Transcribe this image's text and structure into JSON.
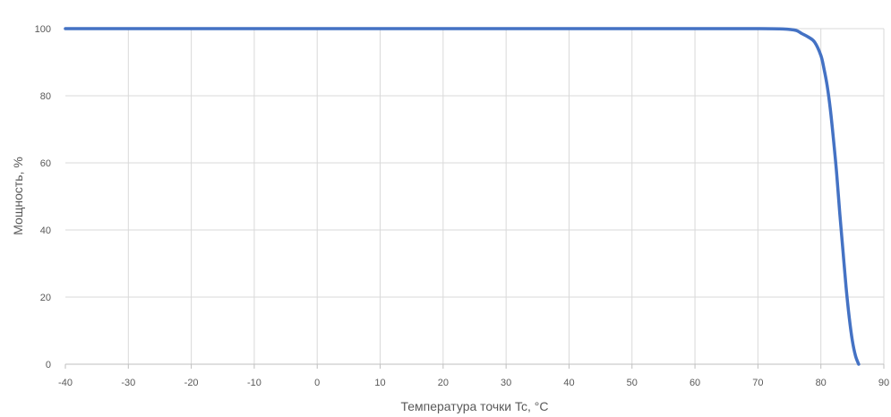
{
  "chart_data": {
    "type": "line",
    "title": "",
    "xlabel": "Температура точки Tc, °C",
    "ylabel": "Мощность, %",
    "xlim": [
      -40,
      90
    ],
    "ylim": [
      0,
      100
    ],
    "x_ticks": [
      -40,
      -30,
      -20,
      -10,
      0,
      10,
      20,
      30,
      40,
      50,
      60,
      70,
      80,
      90
    ],
    "y_ticks": [
      0,
      20,
      40,
      60,
      80,
      100
    ],
    "grid": true,
    "legend": "none",
    "series": [
      {
        "color": "#4472C4",
        "x": [
          -40,
          -30,
          -20,
          -10,
          0,
          10,
          20,
          30,
          40,
          50,
          60,
          70,
          74,
          76,
          77,
          78,
          79,
          80,
          80.5,
          81,
          81.5,
          82,
          82.5,
          83,
          83.5,
          84,
          84.5,
          85,
          85.5,
          86
        ],
        "y": [
          100,
          100,
          100,
          100,
          100,
          100,
          100,
          100,
          100,
          100,
          100,
          100,
          99.9,
          99.5,
          98.5,
          97.5,
          96,
          92,
          88,
          83,
          76,
          67,
          57,
          45,
          34,
          23,
          14,
          7,
          2.5,
          0
        ]
      }
    ]
  }
}
